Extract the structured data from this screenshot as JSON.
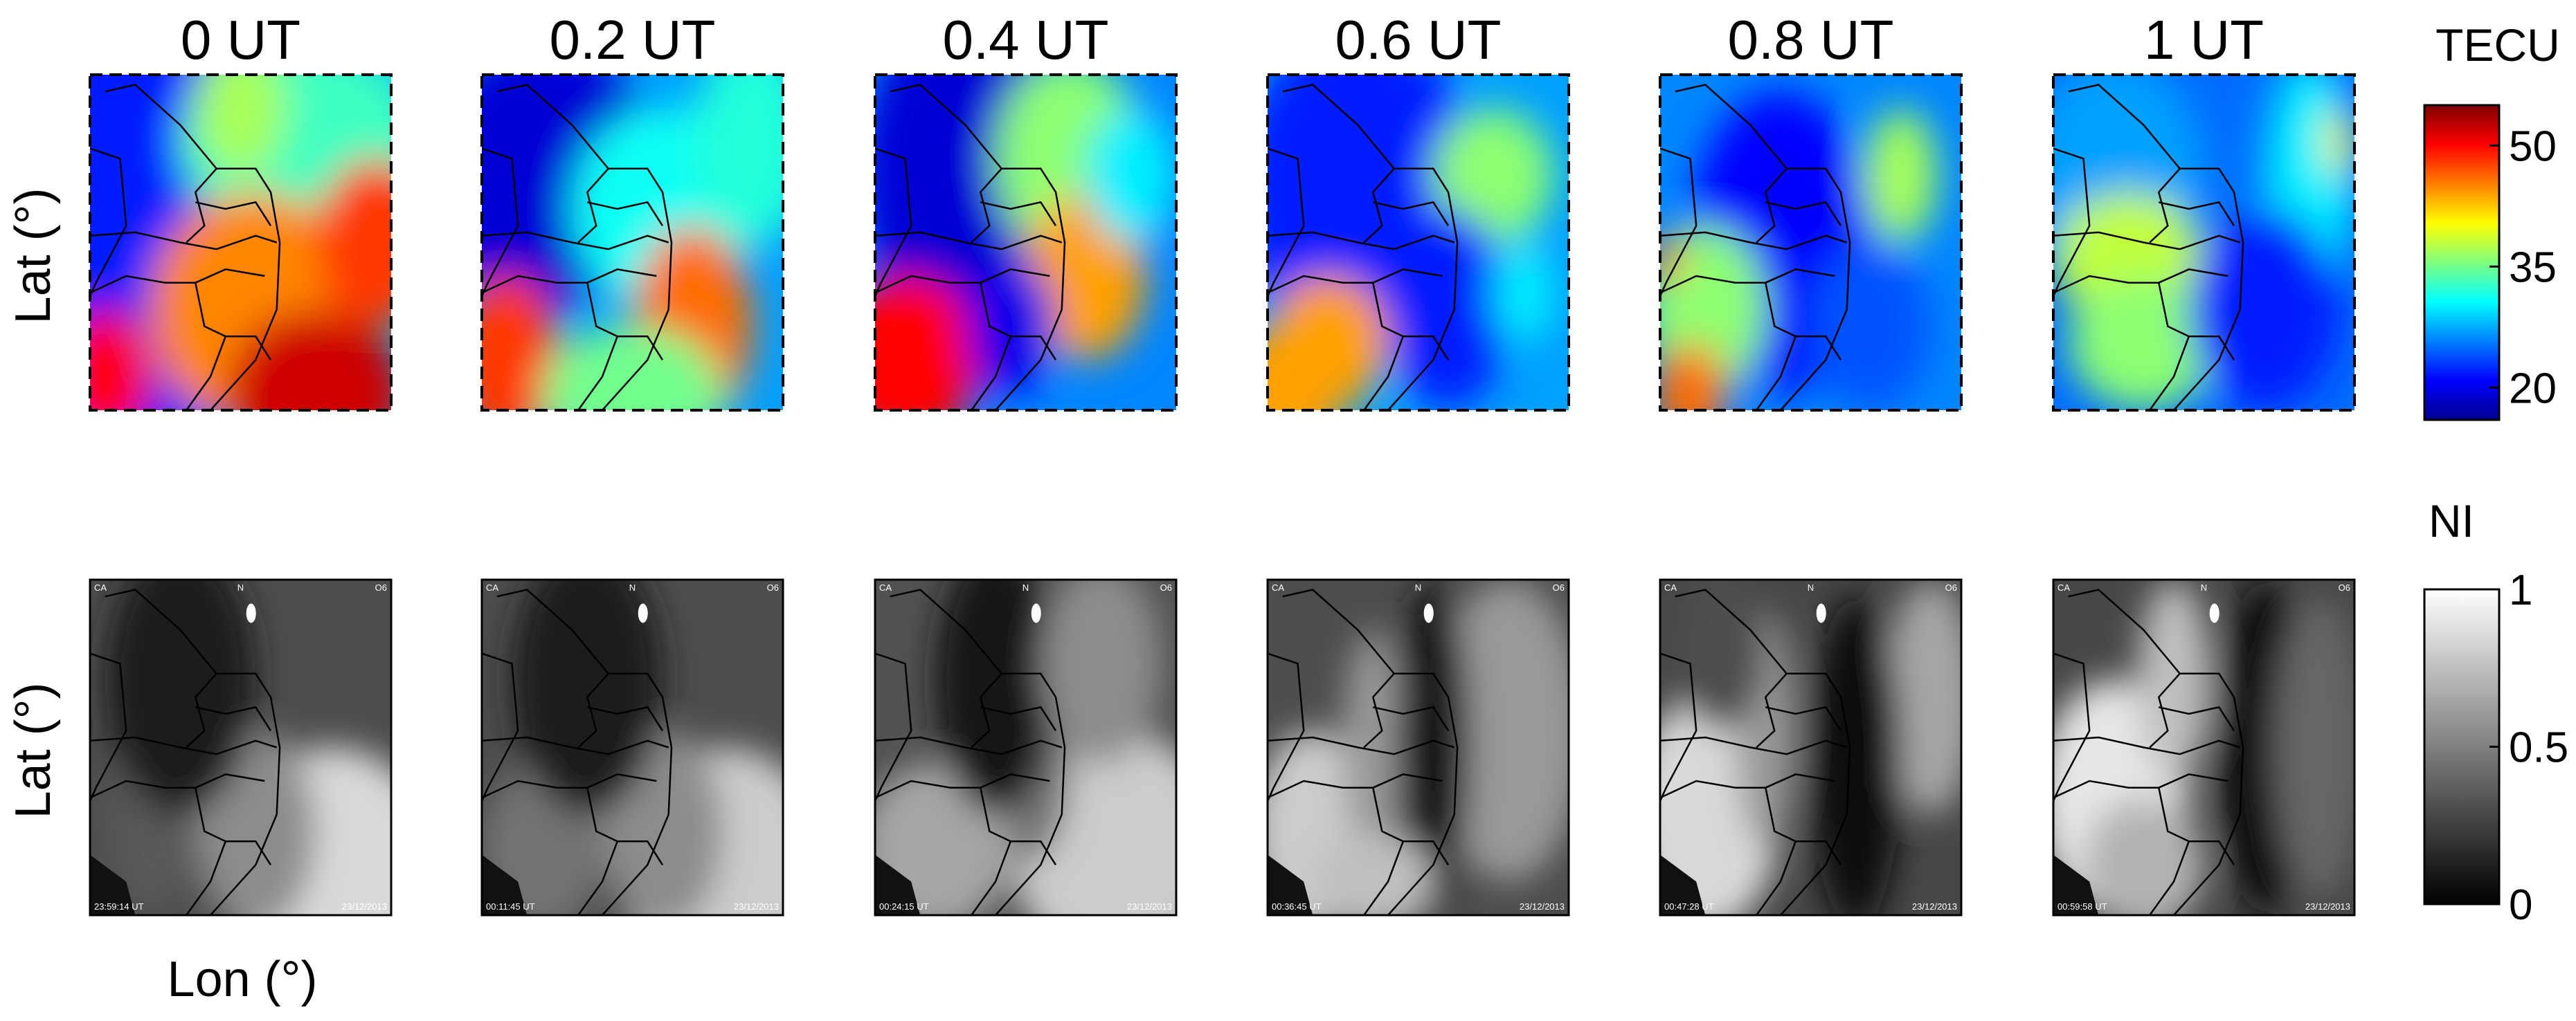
{
  "chart_data": {
    "type": "heatmap",
    "panel_titles": [
      "0 UT",
      "0.2 UT",
      "0.4 UT",
      "0.6 UT",
      "0.8 UT",
      "1 UT"
    ],
    "rows": [
      {
        "name": "TEC",
        "ylabel": "Lat (°)"
      },
      {
        "name": "NI",
        "ylabel": "Lat (°)",
        "xlabel": "Lon (°)"
      }
    ],
    "colorbars": [
      {
        "title": "TECU",
        "ticks": [
          20,
          35,
          50
        ],
        "range": [
          16,
          55
        ],
        "colormap": "jet"
      },
      {
        "title": "NI",
        "ticks": [
          "0",
          "0.5",
          "1"
        ],
        "range": [
          0,
          1
        ],
        "colormap": "gray"
      }
    ],
    "image_labels": {
      "corner_left": "CA",
      "corner_mid": "N",
      "corner_right": "O6",
      "timestamps": [
        "23:59:14 UT",
        "00:11:45 UT",
        "00:24:15 UT",
        "00:36:45 UT",
        "00:47:28 UT",
        "00:59:58 UT"
      ],
      "dates": [
        "23/12/2013",
        "23/12/2013",
        "23/12/2013",
        "23/12/2013",
        "23/12/2013",
        "23/12/2013"
      ]
    }
  },
  "colors": {
    "jet_low": "#000090",
    "jet_high": "#800000",
    "background": "#ffffff",
    "border": "#000000"
  }
}
